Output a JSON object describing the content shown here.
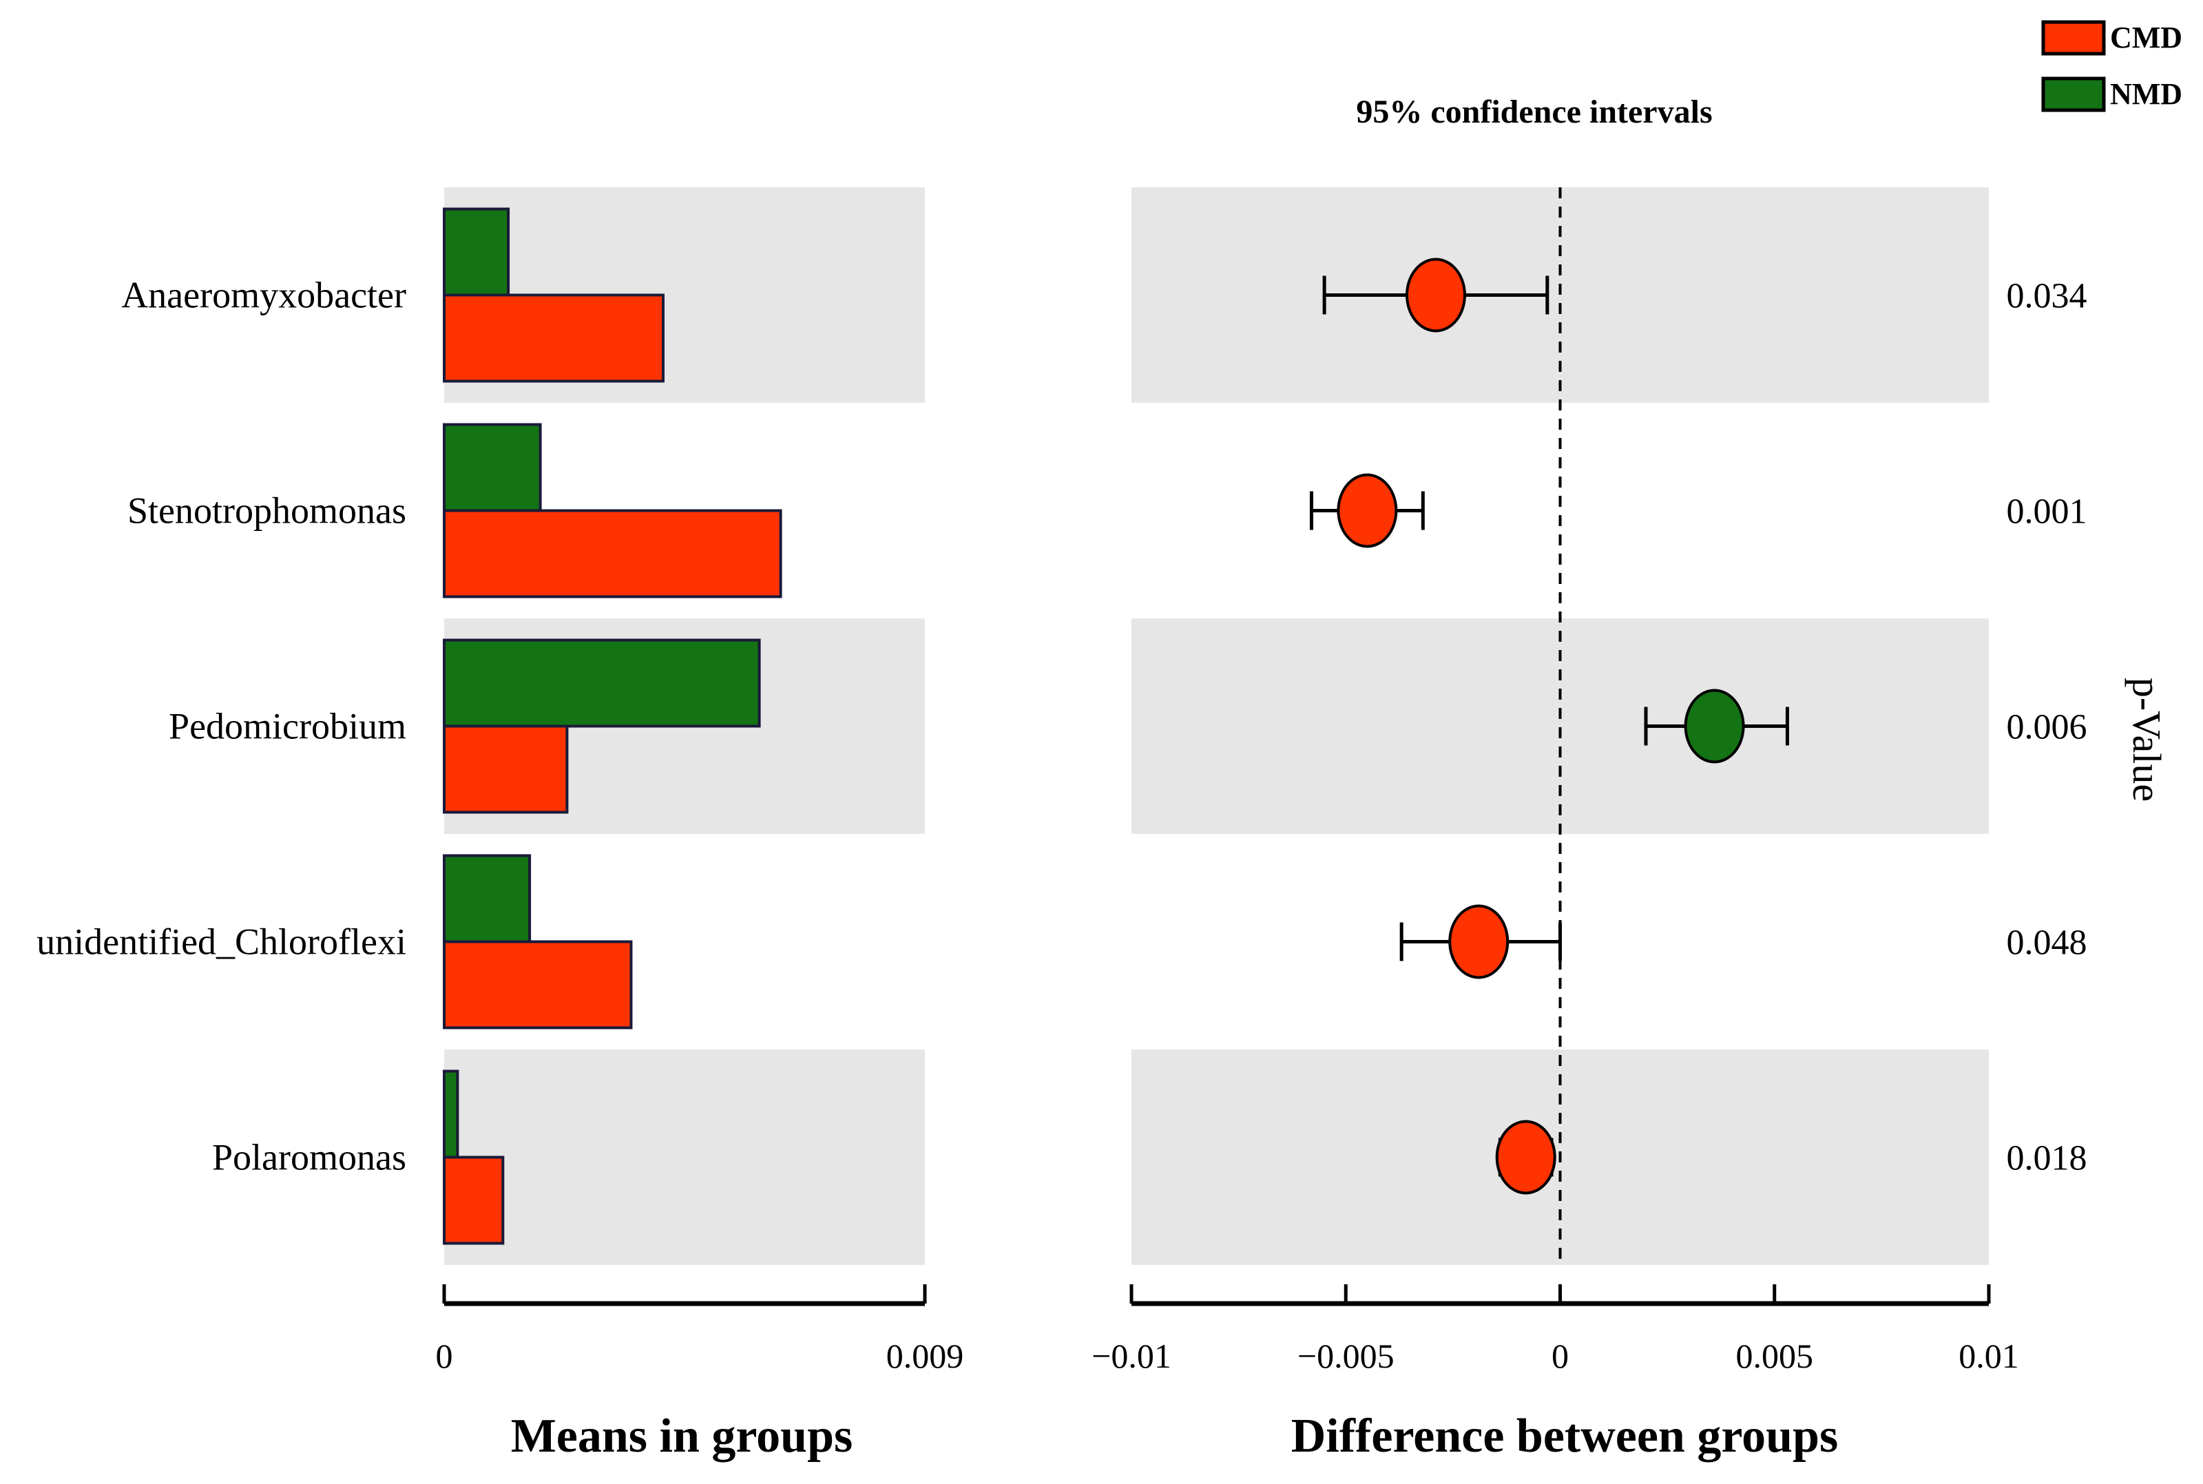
{
  "chart_data": {
    "type": "extended_error_bar",
    "groups": [
      {
        "name": "CMD",
        "color": "#ff3300"
      },
      {
        "name": "NMD",
        "color": "#147314"
      }
    ],
    "categories": [
      "Anaeromyxobacter",
      "Stenotrophomonas",
      "Pedomicrobium",
      "unidentified_Chloroflexi",
      "Polaromonas"
    ],
    "means": {
      "title": "Means in groups",
      "xlim": [
        0,
        0.009
      ],
      "tick_labels": [
        "0",
        "0.009"
      ],
      "series": [
        {
          "name": "NMD",
          "values": [
            0.0012,
            0.0018,
            0.0059,
            0.0016,
            0.00025
          ]
        },
        {
          "name": "CMD",
          "values": [
            0.0041,
            0.0063,
            0.0023,
            0.0035,
            0.0011
          ]
        }
      ]
    },
    "difference": {
      "title": "Difference between groups",
      "subtitle": "95% confidence intervals",
      "xlim": [
        -0.01,
        0.01
      ],
      "ticks": [
        -0.01,
        -0.005,
        0,
        0.005,
        0.01
      ],
      "tick_labels": [
        "−0.01",
        "−0.005",
        "0",
        "0.005",
        "0.01"
      ],
      "points": [
        {
          "estimate": -0.0029,
          "lower": -0.0055,
          "upper": -0.0003,
          "group": "CMD"
        },
        {
          "estimate": -0.0045,
          "lower": -0.0058,
          "upper": -0.0032,
          "group": "CMD"
        },
        {
          "estimate": 0.0036,
          "lower": 0.002,
          "upper": 0.0053,
          "group": "NMD"
        },
        {
          "estimate": -0.0019,
          "lower": -0.0037,
          "upper": 0.0,
          "group": "CMD"
        },
        {
          "estimate": -0.0008,
          "lower": -0.0014,
          "upper": -0.0002,
          "group": "CMD"
        }
      ]
    },
    "p_values": [
      "0.034",
      "0.001",
      "0.006",
      "0.048",
      "0.018"
    ],
    "p_value_title": "p-Value",
    "legend": [
      {
        "label": "CMD",
        "color": "#ff3300"
      },
      {
        "label": "NMD",
        "color": "#147314"
      }
    ],
    "legend_position": "top-right"
  }
}
